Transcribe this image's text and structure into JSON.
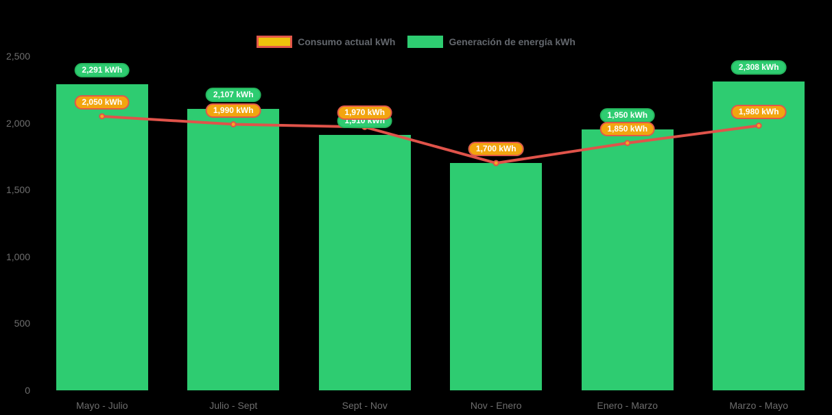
{
  "legend": {
    "consumption_label": "Consumo actual kWh",
    "generation_label": "Generación de energía kWh"
  },
  "colors": {
    "background": "#000000",
    "bar_green": "#2ecc71",
    "pill_green_bg": "#2ecc71",
    "pill_green_border": "#25b65e",
    "pill_orange_bg": "#f2a50f",
    "pill_orange_border": "#e2574a",
    "line_red": "#e0534a",
    "dot_fill": "#f5a623",
    "dot_stroke": "#e0534a",
    "axis_text": "#6e6e6e",
    "legend_swatch_consumo_fill": "#edc20c",
    "legend_swatch_consumo_border": "#e2574a",
    "pill_text": "#ffffff"
  },
  "chart_data": {
    "type": "bar",
    "title": "",
    "xlabel": "",
    "ylabel": "",
    "ylim": [
      0,
      2500
    ],
    "grid": false,
    "legend_position": "top",
    "categories": [
      "Mayo - Julio",
      "Julio - Sept",
      "Sept - Nov",
      "Nov - Enero",
      "Enero - Marzo",
      "Marzo - Mayo"
    ],
    "yticks": [
      {
        "value": 2500,
        "label": "2,500"
      },
      {
        "value": 2000,
        "label": "2,000"
      },
      {
        "value": 1500,
        "label": "1,500"
      },
      {
        "value": 1000,
        "label": "1,000"
      },
      {
        "value": 500,
        "label": "500"
      },
      {
        "value": 0,
        "label": "0"
      }
    ],
    "series": [
      {
        "name": "Generación de energía kWh",
        "type": "bar",
        "color": "#2ecc71",
        "values": [
          2291,
          2107,
          1910,
          1700,
          1950,
          2308
        ],
        "labels": [
          "2,291 kWh",
          "2,107 kWh",
          "1,910 kWh",
          "1,700 kWh",
          "1,950 kWh",
          "2,308 kWh"
        ]
      },
      {
        "name": "Consumo actual kWh",
        "type": "line",
        "color": "#e0534a",
        "values": [
          2050,
          1990,
          1970,
          1700,
          1850,
          1980
        ],
        "labels": [
          "2,050 kWh",
          "1,990 kWh",
          "1,970 kWh",
          "1,700 kWh",
          "1,850 kWh",
          "1,980 kWh"
        ]
      }
    ]
  }
}
